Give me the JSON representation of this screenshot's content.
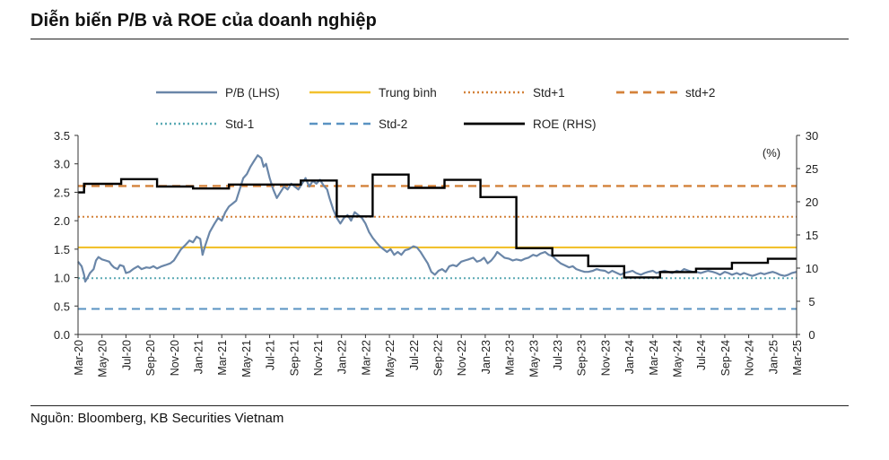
{
  "header": {
    "title": "Diễn biến P/B và ROE của doanh nghiệp"
  },
  "footer": {
    "source": "Nguồn: Bloomberg, KB Securities Vietnam"
  },
  "chart_data": {
    "type": "line",
    "title": "Diễn biến P/B và ROE của doanh nghiệp",
    "left_axis": {
      "ylim": [
        0,
        3.5
      ],
      "ticks": [
        "0.0",
        "0.5",
        "1.0",
        "1.5",
        "2.0",
        "2.5",
        "3.0",
        "3.5"
      ]
    },
    "right_axis": {
      "ylim": [
        0,
        30
      ],
      "ticks": [
        "0",
        "5",
        "10",
        "15",
        "20",
        "25",
        "30"
      ],
      "unit_label": "(%)"
    },
    "x_range": [
      0,
      60
    ],
    "x_tick_labels": [
      "Mar-20",
      "May-20",
      "Jul-20",
      "Sep-20",
      "Nov-20",
      "Jan-21",
      "Mar-21",
      "May-21",
      "Jul-21",
      "Sep-21",
      "Nov-21",
      "Jan-22",
      "Mar-22",
      "May-22",
      "Jul-22",
      "Sep-22",
      "Nov-22",
      "Jan-23",
      "Mar-23",
      "May-23",
      "Jul-23",
      "Sep-23",
      "Nov-23",
      "Jan-24",
      "Mar-24",
      "May-24",
      "Jul-24",
      "Sep-24",
      "Nov-24",
      "Jan-25",
      "Mar-25"
    ],
    "legend": [
      {
        "key": "pb",
        "label": "P/B (LHS)"
      },
      {
        "key": "mean",
        "label": "Trung bình"
      },
      {
        "key": "std1",
        "label": "Std+1"
      },
      {
        "key": "std2",
        "label": "std+2"
      },
      {
        "key": "stdm1",
        "label": "Std-1"
      },
      {
        "key": "stdm2",
        "label": "Std-2"
      },
      {
        "key": "roe",
        "label": "ROE (RHS)"
      }
    ],
    "reference_lines": {
      "mean": 1.53,
      "std1": 2.07,
      "std2": 2.61,
      "stdm1": 0.99,
      "stdm2": 0.45
    },
    "colors": {
      "pb": "#6a86a8",
      "mean": "#f2c12e",
      "std1": "#d4823a",
      "std2": "#d4823a",
      "stdm1": "#5aa9b4",
      "stdm2": "#5a93c2",
      "roe": "#000000",
      "axis": "#333333"
    },
    "pb_series": [
      [
        0,
        1.28
      ],
      [
        0.3,
        1.2
      ],
      [
        0.5,
        1.05
      ],
      [
        0.6,
        0.93
      ],
      [
        0.8,
        1.0
      ],
      [
        1,
        1.08
      ],
      [
        1.3,
        1.15
      ],
      [
        1.5,
        1.3
      ],
      [
        1.7,
        1.36
      ],
      [
        2,
        1.32
      ],
      [
        2.3,
        1.3
      ],
      [
        2.6,
        1.28
      ],
      [
        2.8,
        1.22
      ],
      [
        3,
        1.18
      ],
      [
        3.3,
        1.15
      ],
      [
        3.5,
        1.22
      ],
      [
        3.8,
        1.2
      ],
      [
        4,
        1.08
      ],
      [
        4.3,
        1.1
      ],
      [
        4.6,
        1.15
      ],
      [
        5,
        1.2
      ],
      [
        5.3,
        1.15
      ],
      [
        5.7,
        1.18
      ],
      [
        6,
        1.17
      ],
      [
        6.3,
        1.2
      ],
      [
        6.6,
        1.16
      ],
      [
        7,
        1.2
      ],
      [
        7.3,
        1.22
      ],
      [
        7.7,
        1.25
      ],
      [
        8,
        1.3
      ],
      [
        8.3,
        1.4
      ],
      [
        8.6,
        1.5
      ],
      [
        9,
        1.58
      ],
      [
        9.3,
        1.65
      ],
      [
        9.6,
        1.62
      ],
      [
        9.9,
        1.72
      ],
      [
        10.2,
        1.68
      ],
      [
        10.4,
        1.4
      ],
      [
        10.6,
        1.55
      ],
      [
        11,
        1.8
      ],
      [
        11.4,
        1.95
      ],
      [
        11.7,
        2.05
      ],
      [
        12,
        2.0
      ],
      [
        12.3,
        2.15
      ],
      [
        12.6,
        2.25
      ],
      [
        12.9,
        2.3
      ],
      [
        13.2,
        2.35
      ],
      [
        13.5,
        2.55
      ],
      [
        13.8,
        2.75
      ],
      [
        14.1,
        2.82
      ],
      [
        14.4,
        2.95
      ],
      [
        14.7,
        3.05
      ],
      [
        15,
        3.15
      ],
      [
        15.3,
        3.1
      ],
      [
        15.5,
        2.95
      ],
      [
        15.7,
        3.0
      ],
      [
        16,
        2.75
      ],
      [
        16.3,
        2.55
      ],
      [
        16.6,
        2.4
      ],
      [
        16.9,
        2.5
      ],
      [
        17.2,
        2.6
      ],
      [
        17.5,
        2.55
      ],
      [
        17.8,
        2.65
      ],
      [
        18.1,
        2.6
      ],
      [
        18.4,
        2.55
      ],
      [
        18.7,
        2.65
      ],
      [
        19,
        2.75
      ],
      [
        19.3,
        2.6
      ],
      [
        19.6,
        2.7
      ],
      [
        19.9,
        2.65
      ],
      [
        20.2,
        2.72
      ],
      [
        20.5,
        2.62
      ],
      [
        20.8,
        2.55
      ],
      [
        21,
        2.4
      ],
      [
        21.3,
        2.2
      ],
      [
        21.6,
        2.05
      ],
      [
        21.9,
        1.95
      ],
      [
        22.2,
        2.05
      ],
      [
        22.5,
        2.1
      ],
      [
        22.8,
        2.0
      ],
      [
        23.1,
        2.15
      ],
      [
        23.4,
        2.1
      ],
      [
        23.7,
        2.05
      ],
      [
        24,
        1.95
      ],
      [
        24.3,
        1.8
      ],
      [
        24.6,
        1.7
      ],
      [
        24.9,
        1.62
      ],
      [
        25.2,
        1.55
      ],
      [
        25.5,
        1.5
      ],
      [
        25.8,
        1.45
      ],
      [
        26.1,
        1.5
      ],
      [
        26.4,
        1.4
      ],
      [
        26.7,
        1.45
      ],
      [
        27,
        1.4
      ],
      [
        27.3,
        1.48
      ],
      [
        27.6,
        1.5
      ],
      [
        28,
        1.55
      ],
      [
        28.3,
        1.53
      ],
      [
        28.6,
        1.45
      ],
      [
        28.9,
        1.35
      ],
      [
        29.2,
        1.25
      ],
      [
        29.5,
        1.1
      ],
      [
        29.8,
        1.05
      ],
      [
        30.1,
        1.12
      ],
      [
        30.4,
        1.15
      ],
      [
        30.7,
        1.1
      ],
      [
        31,
        1.2
      ],
      [
        31.3,
        1.22
      ],
      [
        31.6,
        1.2
      ],
      [
        32,
        1.28
      ],
      [
        32.3,
        1.3
      ],
      [
        32.6,
        1.32
      ],
      [
        33,
        1.35
      ],
      [
        33.3,
        1.28
      ],
      [
        33.6,
        1.3
      ],
      [
        33.9,
        1.35
      ],
      [
        34.2,
        1.25
      ],
      [
        34.5,
        1.3
      ],
      [
        34.8,
        1.38
      ],
      [
        35,
        1.45
      ],
      [
        35.3,
        1.4
      ],
      [
        35.6,
        1.35
      ],
      [
        36,
        1.33
      ],
      [
        36.3,
        1.3
      ],
      [
        36.6,
        1.32
      ],
      [
        37,
        1.3
      ],
      [
        37.3,
        1.33
      ],
      [
        37.6,
        1.35
      ],
      [
        38,
        1.4
      ],
      [
        38.3,
        1.38
      ],
      [
        38.6,
        1.42
      ],
      [
        39,
        1.45
      ],
      [
        39.3,
        1.4
      ],
      [
        39.6,
        1.38
      ],
      [
        40,
        1.3
      ],
      [
        40.3,
        1.25
      ],
      [
        40.6,
        1.22
      ],
      [
        41,
        1.18
      ],
      [
        41.3,
        1.2
      ],
      [
        41.6,
        1.15
      ],
      [
        42,
        1.12
      ],
      [
        42.3,
        1.1
      ],
      [
        42.6,
        1.1
      ],
      [
        43,
        1.12
      ],
      [
        43.3,
        1.15
      ],
      [
        43.6,
        1.13
      ],
      [
        44,
        1.12
      ],
      [
        44.3,
        1.08
      ],
      [
        44.6,
        1.12
      ],
      [
        45,
        1.08
      ],
      [
        45.3,
        1.05
      ],
      [
        45.6,
        1.08
      ],
      [
        46,
        1.1
      ],
      [
        46.3,
        1.12
      ],
      [
        46.6,
        1.08
      ],
      [
        47,
        1.05
      ],
      [
        47.3,
        1.08
      ],
      [
        47.6,
        1.1
      ],
      [
        48,
        1.12
      ],
      [
        48.3,
        1.08
      ],
      [
        48.6,
        1.1
      ],
      [
        49,
        1.12
      ],
      [
        49.3,
        1.1
      ],
      [
        49.6,
        1.08
      ],
      [
        50,
        1.12
      ],
      [
        50.3,
        1.1
      ],
      [
        50.6,
        1.15
      ],
      [
        51,
        1.12
      ],
      [
        51.3,
        1.1
      ],
      [
        51.6,
        1.1
      ],
      [
        52,
        1.08
      ],
      [
        52.3,
        1.1
      ],
      [
        52.6,
        1.12
      ],
      [
        53,
        1.1
      ],
      [
        53.3,
        1.08
      ],
      [
        53.6,
        1.05
      ],
      [
        54,
        1.1
      ],
      [
        54.3,
        1.08
      ],
      [
        54.6,
        1.05
      ],
      [
        55,
        1.08
      ],
      [
        55.3,
        1.05
      ],
      [
        55.6,
        1.08
      ],
      [
        56,
        1.05
      ],
      [
        56.3,
        1.03
      ],
      [
        56.6,
        1.05
      ],
      [
        57,
        1.08
      ],
      [
        57.3,
        1.06
      ],
      [
        57.6,
        1.08
      ],
      [
        58,
        1.1
      ],
      [
        58.3,
        1.08
      ],
      [
        58.6,
        1.05
      ],
      [
        59,
        1.03
      ],
      [
        59.3,
        1.05
      ],
      [
        59.6,
        1.08
      ],
      [
        60,
        1.1
      ]
    ],
    "roe_series": [
      [
        0,
        21.4
      ],
      [
        0.5,
        21.4
      ],
      [
        0.5,
        22.7
      ],
      [
        3.6,
        22.7
      ],
      [
        3.6,
        23.4
      ],
      [
        6.6,
        23.4
      ],
      [
        6.6,
        22.3
      ],
      [
        9.6,
        22.3
      ],
      [
        9.6,
        22.0
      ],
      [
        12.6,
        22.0
      ],
      [
        12.6,
        22.6
      ],
      [
        18.6,
        22.6
      ],
      [
        18.6,
        23.2
      ],
      [
        21.6,
        23.2
      ],
      [
        21.6,
        17.8
      ],
      [
        24.6,
        17.8
      ],
      [
        24.6,
        24.1
      ],
      [
        27.6,
        24.1
      ],
      [
        27.6,
        22.1
      ],
      [
        30.6,
        22.1
      ],
      [
        30.6,
        23.3
      ],
      [
        33.6,
        23.3
      ],
      [
        33.6,
        20.7
      ],
      [
        36.6,
        20.7
      ],
      [
        36.6,
        13.0
      ],
      [
        39.6,
        13.0
      ],
      [
        39.6,
        11.9
      ],
      [
        42.6,
        11.9
      ],
      [
        42.6,
        10.3
      ],
      [
        45.6,
        10.3
      ],
      [
        45.6,
        8.6
      ],
      [
        48.6,
        8.6
      ],
      [
        48.6,
        9.4
      ],
      [
        51.6,
        9.4
      ],
      [
        51.6,
        9.9
      ],
      [
        54.6,
        9.9
      ],
      [
        54.6,
        10.8
      ],
      [
        57.6,
        10.8
      ],
      [
        57.6,
        11.4
      ],
      [
        60,
        11.4
      ]
    ]
  }
}
